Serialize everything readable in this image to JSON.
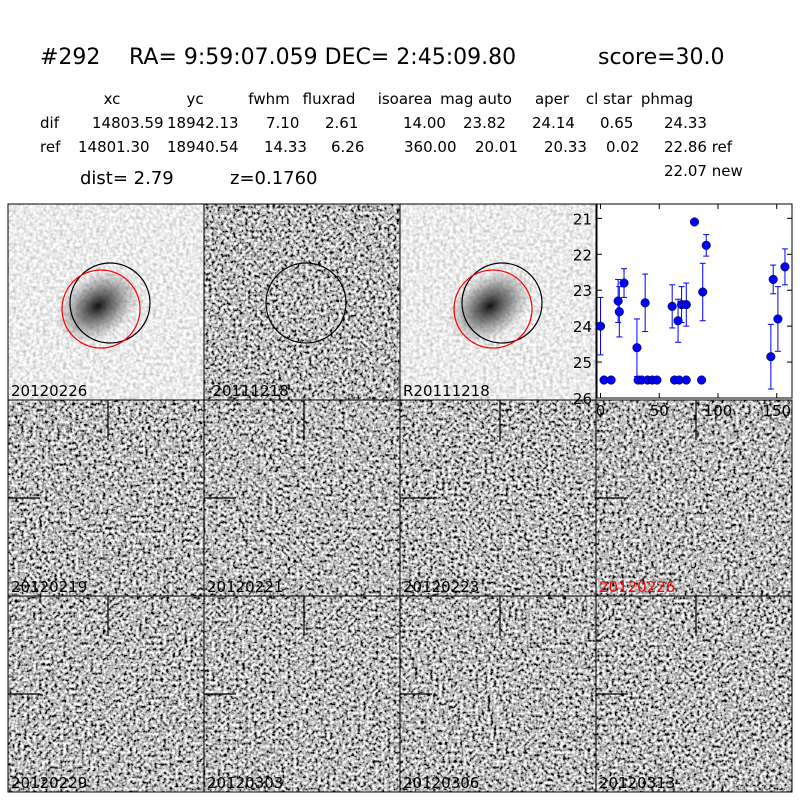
{
  "header": {
    "id": "#292",
    "coords": "RA= 9:59:07.059 DEC= 2:45:09.80",
    "score": "score=30.0"
  },
  "table": {
    "columns": [
      "xc",
      "yc",
      "fwhm",
      "fluxrad",
      "isoarea",
      "mag auto",
      "aper",
      "cl star",
      "phmag"
    ],
    "rows": [
      [
        "dif",
        "14803.59",
        "18942.13",
        "7.10",
        "2.61",
        "14.00",
        "23.82",
        "24.14",
        "0.65",
        "24.33"
      ],
      [
        "ref",
        "14801.30",
        "18940.54",
        "14.33",
        "6.26",
        "360.00",
        "20.01",
        "20.33",
        "0.02",
        "22.86 ref"
      ]
    ],
    "extra": "22.07 new"
  },
  "dist": "dist=  2.79",
  "z": "z=0.1760",
  "panels": [
    "20120226",
    "-20111218",
    "R20111218",
    "20120219",
    "20120221",
    "20120223",
    "20120226",
    "20120229",
    "20120303",
    "20120306",
    "20120313"
  ],
  "chart_data": {
    "type": "scatter",
    "color": "#0000ff",
    "x": [
      0,
      3,
      9,
      15,
      16,
      20,
      31,
      32,
      35,
      38,
      40,
      44,
      48,
      61,
      63,
      66,
      67,
      69,
      73,
      73,
      80,
      86,
      87,
      90,
      145,
      147,
      151,
      157
    ],
    "values": [
      24.0,
      25.5,
      25.5,
      23.3,
      23.6,
      22.8,
      24.6,
      25.5,
      25.5,
      23.35,
      25.5,
      25.5,
      25.5,
      23.45,
      25.5,
      23.85,
      25.5,
      23.4,
      23.4,
      25.5,
      21.1,
      25.5,
      23.05,
      21.75,
      24.85,
      22.7,
      23.8,
      22.35
    ],
    "errors": [
      0.8,
      null,
      null,
      0.6,
      0.7,
      0.4,
      0.8,
      null,
      null,
      0.8,
      null,
      null,
      null,
      0.6,
      null,
      0.6,
      null,
      0.5,
      0.6,
      null,
      0.05,
      null,
      0.8,
      0.3,
      0.9,
      0.4,
      0.9,
      0.5
    ],
    "xlim": [
      -3,
      163
    ],
    "ylim": [
      26,
      20.6
    ],
    "xticks": [
      0,
      50,
      100,
      150
    ],
    "yticks": [
      21,
      22,
      23,
      24,
      25,
      26
    ]
  }
}
